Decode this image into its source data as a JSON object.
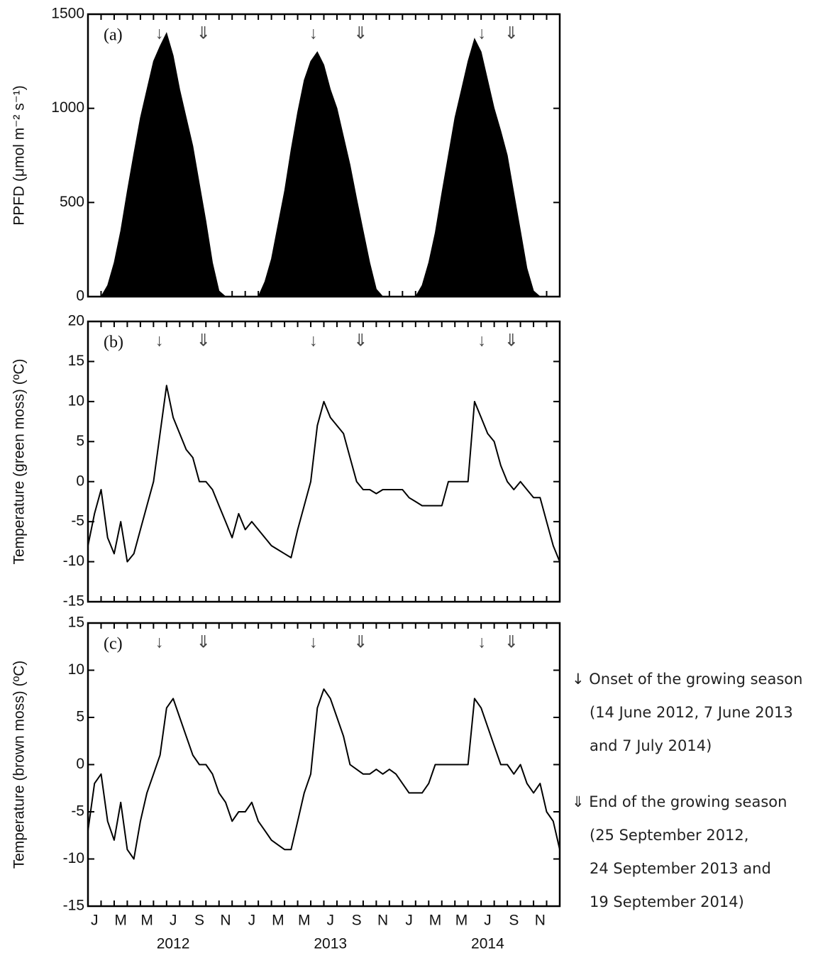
{
  "chart_data": [
    {
      "type": "area",
      "panel_label": "(a)",
      "ylabel": "PPFD (μmol m⁻² s⁻¹)",
      "color": "#000000",
      "xlim": [
        0,
        36
      ],
      "ylim": [
        0,
        1500
      ],
      "yticks": [
        0,
        500,
        1000,
        1500
      ],
      "arrows": [
        {
          "x": 5.45,
          "label": "↓"
        },
        {
          "x": 8.8,
          "label": "⇓"
        },
        {
          "x": 17.2,
          "label": "↓"
        },
        {
          "x": 20.8,
          "label": "⇓"
        },
        {
          "x": 30.05,
          "label": "↓"
        },
        {
          "x": 32.3,
          "label": "⇓"
        }
      ],
      "x": [
        0,
        0.5,
        1,
        1.5,
        2,
        2.5,
        3,
        3.5,
        4,
        4.5,
        5,
        5.5,
        6,
        6.5,
        7,
        7.5,
        8,
        8.5,
        9,
        9.5,
        10,
        10.5,
        11,
        11.5,
        12,
        12.5,
        13,
        13.5,
        14,
        14.5,
        15,
        15.5,
        16,
        16.5,
        17,
        17.5,
        18,
        18.5,
        19,
        19.5,
        20,
        20.5,
        21,
        21.5,
        22,
        22.5,
        23,
        23.5,
        24,
        24.5,
        25,
        25.5,
        26,
        26.5,
        27,
        27.5,
        28,
        28.5,
        29,
        29.5,
        30,
        30.5,
        31,
        31.5,
        32,
        32.5,
        33,
        33.5,
        34,
        34.5,
        35,
        35.5,
        36
      ],
      "values": [
        0,
        0,
        0,
        60,
        180,
        350,
        560,
        760,
        950,
        1100,
        1250,
        1330,
        1400,
        1280,
        1100,
        950,
        800,
        600,
        400,
        180,
        30,
        0,
        0,
        0,
        0,
        0,
        0,
        80,
        200,
        380,
        560,
        780,
        980,
        1150,
        1250,
        1300,
        1230,
        1100,
        1000,
        850,
        700,
        520,
        350,
        180,
        40,
        0,
        0,
        0,
        0,
        0,
        0,
        60,
        180,
        340,
        550,
        750,
        950,
        1100,
        1250,
        1370,
        1300,
        1150,
        1000,
        880,
        750,
        550,
        350,
        150,
        30,
        0,
        0,
        0,
        0
      ]
    },
    {
      "type": "line",
      "panel_label": "(b)",
      "ylabel": "Temperature  (green moss) (ºC)",
      "color": "#000000",
      "xlim": [
        0,
        36
      ],
      "ylim": [
        -15,
        20
      ],
      "yticks": [
        -15,
        -10,
        -5,
        0,
        5,
        10,
        15,
        20
      ],
      "arrows": [
        {
          "x": 5.45,
          "label": "↓"
        },
        {
          "x": 8.8,
          "label": "⇓"
        },
        {
          "x": 17.2,
          "label": "↓"
        },
        {
          "x": 20.8,
          "label": "⇓"
        },
        {
          "x": 30.05,
          "label": "↓"
        },
        {
          "x": 32.3,
          "label": "⇓"
        }
      ],
      "x": [
        0,
        0.5,
        1,
        1.5,
        2,
        2.5,
        3,
        3.5,
        4,
        4.5,
        5,
        5.5,
        6,
        6.5,
        7,
        7.5,
        8,
        8.5,
        9,
        9.5,
        10,
        10.5,
        11,
        11.5,
        12,
        12.5,
        13,
        13.5,
        14,
        14.5,
        15,
        15.5,
        16,
        16.5,
        17,
        17.5,
        18,
        18.5,
        19,
        19.5,
        20,
        20.5,
        21,
        21.5,
        22,
        22.5,
        23,
        23.5,
        24,
        24.5,
        25,
        25.5,
        26,
        26.5,
        27,
        27.5,
        28,
        28.5,
        29,
        29.5,
        30,
        30.5,
        31,
        31.5,
        32,
        32.5,
        33,
        33.5,
        34,
        34.5,
        35,
        35.5,
        36
      ],
      "values": [
        -8,
        -4,
        -1,
        -7,
        -9,
        -5,
        -10,
        -9,
        -6,
        -3,
        0,
        6,
        12,
        8,
        6,
        4,
        3,
        0,
        0,
        -1,
        -3,
        -5,
        -7,
        -4,
        -6,
        -5,
        -6,
        -7,
        -8,
        -8.5,
        -9,
        -9.5,
        -6,
        -3,
        0,
        7,
        10,
        8,
        7,
        6,
        3,
        0,
        -1,
        -1,
        -1.5,
        -1,
        -1,
        -1,
        -1,
        -2,
        -2.5,
        -3,
        -3,
        -3,
        -3,
        0,
        0,
        0,
        0,
        10,
        8,
        6,
        5,
        2,
        0,
        -1,
        0,
        -1,
        -2,
        -2,
        -5,
        -8,
        -10
      ]
    },
    {
      "type": "line",
      "panel_label": "(c)",
      "ylabel": "Temperature  (brown moss) (ºC)",
      "color": "#000000",
      "xlim": [
        0,
        36
      ],
      "ylim": [
        -15,
        15
      ],
      "yticks": [
        -15,
        -10,
        -5,
        0,
        5,
        10,
        15
      ],
      "arrows": [
        {
          "x": 5.45,
          "label": "↓"
        },
        {
          "x": 8.8,
          "label": "⇓"
        },
        {
          "x": 17.2,
          "label": "↓"
        },
        {
          "x": 20.8,
          "label": "⇓"
        },
        {
          "x": 30.05,
          "label": "↓"
        },
        {
          "x": 32.3,
          "label": "⇓"
        }
      ],
      "xticks": [
        {
          "value": 0.5,
          "label": "J"
        },
        {
          "value": 2.5,
          "label": "M"
        },
        {
          "value": 4.5,
          "label": "M"
        },
        {
          "value": 6.5,
          "label": "J"
        },
        {
          "value": 8.5,
          "label": "S"
        },
        {
          "value": 10.5,
          "label": "N"
        },
        {
          "value": 12.5,
          "label": "J"
        },
        {
          "value": 14.5,
          "label": "M"
        },
        {
          "value": 16.5,
          "label": "M"
        },
        {
          "value": 18.5,
          "label": "J"
        },
        {
          "value": 20.5,
          "label": "S"
        },
        {
          "value": 22.5,
          "label": "N"
        },
        {
          "value": 24.5,
          "label": "J"
        },
        {
          "value": 26.5,
          "label": "M"
        },
        {
          "value": 28.5,
          "label": "M"
        },
        {
          "value": 30.5,
          "label": "J"
        },
        {
          "value": 32.5,
          "label": "S"
        },
        {
          "value": 34.5,
          "label": "N"
        }
      ],
      "year_labels": [
        {
          "value": 6.5,
          "label": "2012"
        },
        {
          "value": 18.5,
          "label": "2013"
        },
        {
          "value": 30.5,
          "label": "2014"
        }
      ],
      "x": [
        0,
        0.5,
        1,
        1.5,
        2,
        2.5,
        3,
        3.5,
        4,
        4.5,
        5,
        5.5,
        6,
        6.5,
        7,
        7.5,
        8,
        8.5,
        9,
        9.5,
        10,
        10.5,
        11,
        11.5,
        12,
        12.5,
        13,
        13.5,
        14,
        14.5,
        15,
        15.5,
        16,
        16.5,
        17,
        17.5,
        18,
        18.5,
        19,
        19.5,
        20,
        20.5,
        21,
        21.5,
        22,
        22.5,
        23,
        23.5,
        24,
        24.5,
        25,
        25.5,
        26,
        26.5,
        27,
        27.5,
        28,
        28.5,
        29,
        29.5,
        30,
        30.5,
        31,
        31.5,
        32,
        32.5,
        33,
        33.5,
        34,
        34.5,
        35,
        35.5,
        36
      ],
      "values": [
        -7,
        -2,
        -1,
        -6,
        -8,
        -4,
        -9,
        -10,
        -6,
        -3,
        -1,
        1,
        6,
        7,
        5,
        3,
        1,
        0,
        0,
        -1,
        -3,
        -4,
        -6,
        -5,
        -5,
        -4,
        -6,
        -7,
        -8,
        -8.5,
        -9,
        -9,
        -6,
        -3,
        -1,
        6,
        8,
        7,
        5,
        3,
        0,
        -0.5,
        -1,
        -1,
        -0.5,
        -1,
        -0.5,
        -1,
        -2,
        -3,
        -3,
        -3,
        -2,
        0,
        0,
        0,
        0,
        0,
        0,
        7,
        6,
        4,
        2,
        0,
        0,
        -1,
        0,
        -2,
        -3,
        -2,
        -5,
        -6,
        -9
      ]
    }
  ],
  "month_ticks": [
    1,
    2,
    3,
    4,
    5,
    6,
    7,
    8,
    9,
    10,
    11,
    12,
    13,
    14,
    15,
    16,
    17,
    18,
    19,
    20,
    21,
    22,
    23,
    24,
    25,
    26,
    27,
    28,
    29,
    30,
    31,
    32,
    33,
    34,
    35
  ],
  "side_notes": [
    "↓ Onset of the growing season",
    "(14 June 2012, 7 June 2013",
    "and 7 July 2014)",
    "⇓ End of the growing season",
    "(25 September 2012,",
    "24 September 2013 and",
    "19 September 2014)"
  ]
}
